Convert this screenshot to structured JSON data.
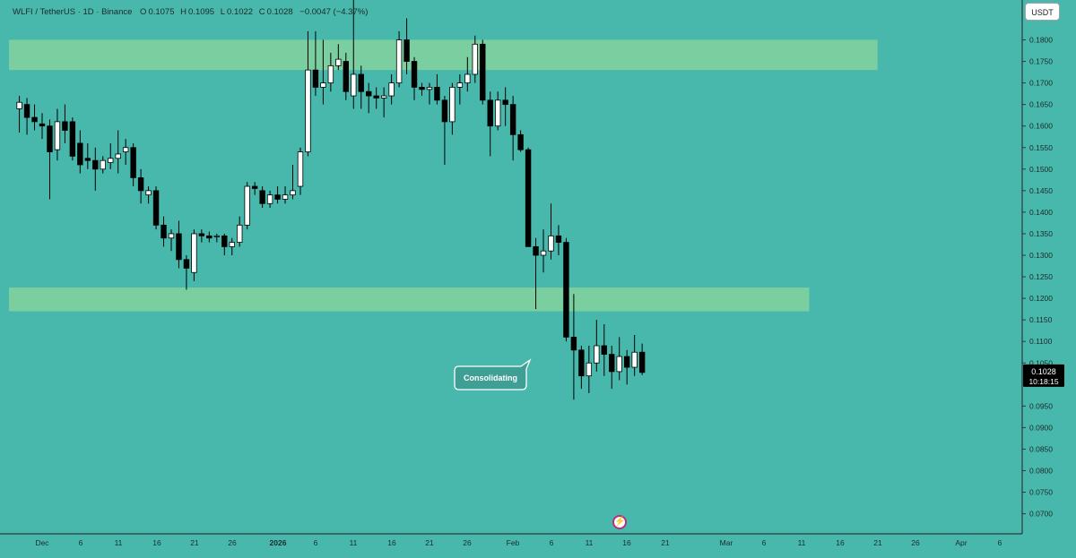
{
  "header": {
    "symbol": "WLFI / TetherUS · 1D · Binance",
    "open_label": "O",
    "open": "0.1075",
    "high_label": "H",
    "high": "0.1095",
    "low_label": "L",
    "low": "0.1022",
    "close_label": "C",
    "close": "0.1028",
    "change": "−0.0047 (−4.37%)"
  },
  "currency_button": "USDT",
  "price_label": {
    "price": "0.1028",
    "countdown": "10:18:15"
  },
  "annotation": {
    "text": "Consolidating"
  },
  "colors": {
    "background": "#48b8ac",
    "zone": "#7ecf9e",
    "bull_body": "#ffffff",
    "bear_body": "#000000",
    "wick": "#000000",
    "axis": "#2b3a3a"
  },
  "icons": {
    "flash": "lightning-icon"
  },
  "chart_data": {
    "type": "candlestick",
    "x_tick_labels": [
      "Dec",
      "6",
      "11",
      "16",
      "21",
      "26",
      "2026",
      "6",
      "11",
      "16",
      "21",
      "26",
      "Feb",
      "6",
      "11",
      "16",
      "21",
      "Mar",
      "6",
      "11",
      "16",
      "21",
      "26",
      "Apr",
      "6"
    ],
    "y_tick_labels": [
      "0.1800",
      "0.1750",
      "0.1700",
      "0.1650",
      "0.1600",
      "0.1550",
      "0.1500",
      "0.1450",
      "0.1400",
      "0.1350",
      "0.1300",
      "0.1250",
      "0.1200",
      "0.1150",
      "0.1100",
      "0.1050",
      "0.0950",
      "0.0900",
      "0.0850",
      "0.0800",
      "0.0750",
      "0.0700"
    ],
    "ylim": [
      0.0665,
      0.1855
    ],
    "grid": false,
    "zones": [
      {
        "low": 0.173,
        "high": 0.18,
        "x_end_day": 110
      },
      {
        "low": 0.117,
        "high": 0.1225,
        "x_end_day": 101
      }
    ],
    "callout_day": 62,
    "candles": [
      {
        "day": -3,
        "o": 0.164,
        "h": 0.167,
        "l": 0.1585,
        "c": 0.1655
      },
      {
        "day": -2,
        "o": 0.165,
        "h": 0.1665,
        "l": 0.158,
        "c": 0.162
      },
      {
        "day": -1,
        "o": 0.162,
        "h": 0.165,
        "l": 0.159,
        "c": 0.161
      },
      {
        "day": 0,
        "o": 0.1605,
        "h": 0.163,
        "l": 0.157,
        "c": 0.16
      },
      {
        "day": 1,
        "o": 0.16,
        "h": 0.1615,
        "l": 0.143,
        "c": 0.154
      },
      {
        "day": 2,
        "o": 0.1545,
        "h": 0.164,
        "l": 0.152,
        "c": 0.161
      },
      {
        "day": 3,
        "o": 0.161,
        "h": 0.165,
        "l": 0.156,
        "c": 0.159
      },
      {
        "day": 4,
        "o": 0.161,
        "h": 0.162,
        "l": 0.152,
        "c": 0.153
      },
      {
        "day": 5,
        "o": 0.156,
        "h": 0.159,
        "l": 0.149,
        "c": 0.151
      },
      {
        "day": 6,
        "o": 0.1525,
        "h": 0.156,
        "l": 0.15,
        "c": 0.152
      },
      {
        "day": 7,
        "o": 0.152,
        "h": 0.155,
        "l": 0.145,
        "c": 0.15
      },
      {
        "day": 8,
        "o": 0.15,
        "h": 0.153,
        "l": 0.149,
        "c": 0.152
      },
      {
        "day": 9,
        "o": 0.1515,
        "h": 0.156,
        "l": 0.15,
        "c": 0.1525
      },
      {
        "day": 10,
        "o": 0.1525,
        "h": 0.159,
        "l": 0.149,
        "c": 0.1535
      },
      {
        "day": 11,
        "o": 0.154,
        "h": 0.157,
        "l": 0.151,
        "c": 0.155
      },
      {
        "day": 12,
        "o": 0.155,
        "h": 0.156,
        "l": 0.146,
        "c": 0.148
      },
      {
        "day": 13,
        "o": 0.148,
        "h": 0.15,
        "l": 0.142,
        "c": 0.145
      },
      {
        "day": 14,
        "o": 0.144,
        "h": 0.146,
        "l": 0.142,
        "c": 0.145
      },
      {
        "day": 15,
        "o": 0.145,
        "h": 0.146,
        "l": 0.136,
        "c": 0.137
      },
      {
        "day": 16,
        "o": 0.137,
        "h": 0.139,
        "l": 0.132,
        "c": 0.134
      },
      {
        "day": 17,
        "o": 0.134,
        "h": 0.136,
        "l": 0.131,
        "c": 0.135
      },
      {
        "day": 18,
        "o": 0.135,
        "h": 0.138,
        "l": 0.127,
        "c": 0.129
      },
      {
        "day": 19,
        "o": 0.129,
        "h": 0.13,
        "l": 0.122,
        "c": 0.127
      },
      {
        "day": 20,
        "o": 0.126,
        "h": 0.136,
        "l": 0.124,
        "c": 0.135
      },
      {
        "day": 21,
        "o": 0.135,
        "h": 0.136,
        "l": 0.133,
        "c": 0.1345
      },
      {
        "day": 22,
        "o": 0.1345,
        "h": 0.1355,
        "l": 0.133,
        "c": 0.134
      },
      {
        "day": 23,
        "o": 0.1345,
        "h": 0.135,
        "l": 0.133,
        "c": 0.1345
      },
      {
        "day": 24,
        "o": 0.1345,
        "h": 0.135,
        "l": 0.13,
        "c": 0.132
      },
      {
        "day": 25,
        "o": 0.132,
        "h": 0.134,
        "l": 0.13,
        "c": 0.133
      },
      {
        "day": 26,
        "o": 0.133,
        "h": 0.139,
        "l": 0.132,
        "c": 0.137
      },
      {
        "day": 27,
        "o": 0.137,
        "h": 0.147,
        "l": 0.136,
        "c": 0.146
      },
      {
        "day": 28,
        "o": 0.146,
        "h": 0.147,
        "l": 0.144,
        "c": 0.1455
      },
      {
        "day": 29,
        "o": 0.145,
        "h": 0.146,
        "l": 0.141,
        "c": 0.142
      },
      {
        "day": 30,
        "o": 0.142,
        "h": 0.145,
        "l": 0.141,
        "c": 0.144
      },
      {
        "day": 31,
        "o": 0.144,
        "h": 0.146,
        "l": 0.142,
        "c": 0.143
      },
      {
        "day": 32,
        "o": 0.143,
        "h": 0.146,
        "l": 0.142,
        "c": 0.144
      },
      {
        "day": 33,
        "o": 0.144,
        "h": 0.151,
        "l": 0.143,
        "c": 0.145
      },
      {
        "day": 34,
        "o": 0.146,
        "h": 0.155,
        "l": 0.144,
        "c": 0.154
      },
      {
        "day": 35,
        "o": 0.154,
        "h": 0.182,
        "l": 0.153,
        "c": 0.173
      },
      {
        "day": 36,
        "o": 0.173,
        "h": 0.182,
        "l": 0.167,
        "c": 0.169
      },
      {
        "day": 37,
        "o": 0.169,
        "h": 0.18,
        "l": 0.165,
        "c": 0.17
      },
      {
        "day": 38,
        "o": 0.17,
        "h": 0.177,
        "l": 0.168,
        "c": 0.174
      },
      {
        "day": 39,
        "o": 0.174,
        "h": 0.179,
        "l": 0.173,
        "c": 0.1755
      },
      {
        "day": 40,
        "o": 0.175,
        "h": 0.177,
        "l": 0.166,
        "c": 0.168
      },
      {
        "day": 41,
        "o": 0.167,
        "h": 0.191,
        "l": 0.164,
        "c": 0.172
      },
      {
        "day": 42,
        "o": 0.172,
        "h": 0.174,
        "l": 0.164,
        "c": 0.168
      },
      {
        "day": 43,
        "o": 0.168,
        "h": 0.17,
        "l": 0.163,
        "c": 0.167
      },
      {
        "day": 44,
        "o": 0.167,
        "h": 0.169,
        "l": 0.164,
        "c": 0.1665
      },
      {
        "day": 45,
        "o": 0.1665,
        "h": 0.169,
        "l": 0.162,
        "c": 0.167
      },
      {
        "day": 46,
        "o": 0.167,
        "h": 0.172,
        "l": 0.165,
        "c": 0.17
      },
      {
        "day": 47,
        "o": 0.17,
        "h": 0.182,
        "l": 0.169,
        "c": 0.18
      },
      {
        "day": 48,
        "o": 0.18,
        "h": 0.185,
        "l": 0.172,
        "c": 0.175
      },
      {
        "day": 49,
        "o": 0.175,
        "h": 0.176,
        "l": 0.166,
        "c": 0.169
      },
      {
        "day": 50,
        "o": 0.169,
        "h": 0.17,
        "l": 0.167,
        "c": 0.1685
      },
      {
        "day": 51,
        "o": 0.1685,
        "h": 0.17,
        "l": 0.165,
        "c": 0.169
      },
      {
        "day": 52,
        "o": 0.169,
        "h": 0.172,
        "l": 0.165,
        "c": 0.166
      },
      {
        "day": 53,
        "o": 0.166,
        "h": 0.167,
        "l": 0.151,
        "c": 0.161
      },
      {
        "day": 54,
        "o": 0.161,
        "h": 0.17,
        "l": 0.158,
        "c": 0.169
      },
      {
        "day": 55,
        "o": 0.169,
        "h": 0.172,
        "l": 0.165,
        "c": 0.17
      },
      {
        "day": 56,
        "o": 0.17,
        "h": 0.176,
        "l": 0.168,
        "c": 0.172
      },
      {
        "day": 57,
        "o": 0.172,
        "h": 0.181,
        "l": 0.17,
        "c": 0.179
      },
      {
        "day": 58,
        "o": 0.179,
        "h": 0.18,
        "l": 0.165,
        "c": 0.166
      },
      {
        "day": 59,
        "o": 0.166,
        "h": 0.168,
        "l": 0.153,
        "c": 0.16
      },
      {
        "day": 60,
        "o": 0.16,
        "h": 0.168,
        "l": 0.159,
        "c": 0.166
      },
      {
        "day": 61,
        "o": 0.166,
        "h": 0.169,
        "l": 0.16,
        "c": 0.165
      },
      {
        "day": 62,
        "o": 0.165,
        "h": 0.167,
        "l": 0.152,
        "c": 0.158
      },
      {
        "day": 63,
        "o": 0.158,
        "h": 0.159,
        "l": 0.154,
        "c": 0.1545
      },
      {
        "day": 64,
        "o": 0.1545,
        "h": 0.155,
        "l": 0.132,
        "c": 0.132
      },
      {
        "day": 65,
        "o": 0.132,
        "h": 0.134,
        "l": 0.1175,
        "c": 0.13
      },
      {
        "day": 66,
        "o": 0.13,
        "h": 0.136,
        "l": 0.126,
        "c": 0.131
      },
      {
        "day": 67,
        "o": 0.131,
        "h": 0.142,
        "l": 0.129,
        "c": 0.1345
      },
      {
        "day": 68,
        "o": 0.1345,
        "h": 0.137,
        "l": 0.13,
        "c": 0.133
      },
      {
        "day": 69,
        "o": 0.133,
        "h": 0.134,
        "l": 0.11,
        "c": 0.111
      },
      {
        "day": 70,
        "o": 0.111,
        "h": 0.121,
        "l": 0.0965,
        "c": 0.108
      },
      {
        "day": 71,
        "o": 0.108,
        "h": 0.109,
        "l": 0.099,
        "c": 0.102
      },
      {
        "day": 72,
        "o": 0.102,
        "h": 0.109,
        "l": 0.098,
        "c": 0.105
      },
      {
        "day": 73,
        "o": 0.105,
        "h": 0.115,
        "l": 0.103,
        "c": 0.109
      },
      {
        "day": 74,
        "o": 0.109,
        "h": 0.114,
        "l": 0.102,
        "c": 0.107
      },
      {
        "day": 75,
        "o": 0.107,
        "h": 0.109,
        "l": 0.099,
        "c": 0.103
      },
      {
        "day": 76,
        "o": 0.103,
        "h": 0.111,
        "l": 0.101,
        "c": 0.1065
      },
      {
        "day": 77,
        "o": 0.1065,
        "h": 0.108,
        "l": 0.1,
        "c": 0.104
      },
      {
        "day": 78,
        "o": 0.104,
        "h": 0.1115,
        "l": 0.102,
        "c": 0.1075
      },
      {
        "day": 79,
        "o": 0.1075,
        "h": 0.1095,
        "l": 0.1022,
        "c": 0.1028
      }
    ]
  }
}
